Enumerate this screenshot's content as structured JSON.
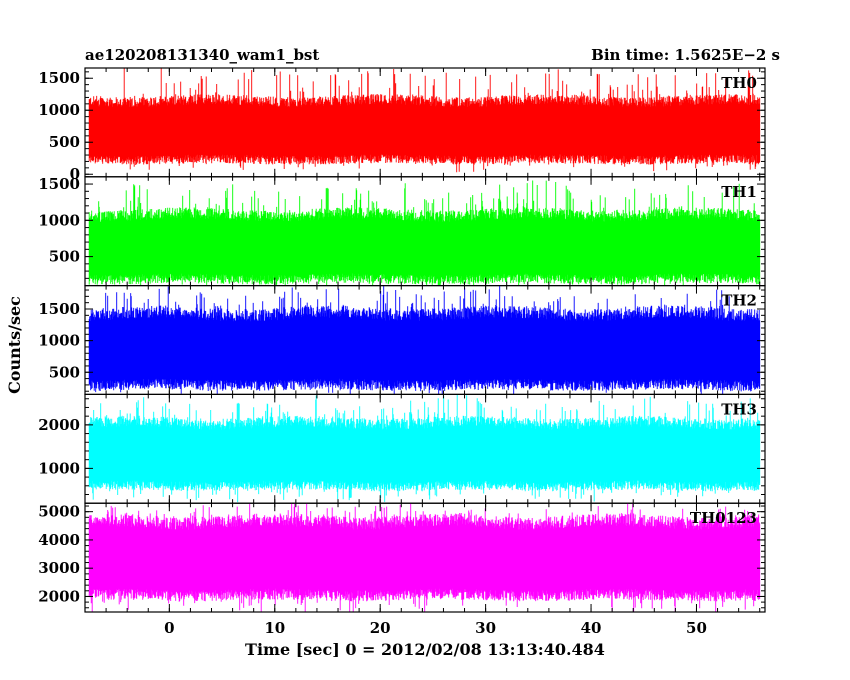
{
  "header": {
    "left_title": "ae120208131340_wam1_bst",
    "right_title": "Bin time: 1.5625E−2 s"
  },
  "axes": {
    "xlabel": "Time [sec] 0 = 2012/02/08 13:13:40.484",
    "ylabel": "Counts/sec"
  },
  "chart_data": {
    "type": "line",
    "x_ticks": [
      0,
      10,
      20,
      30,
      40,
      50
    ],
    "xlim": [
      -8,
      56.5
    ],
    "data_x_range": [
      -7.6,
      56.0
    ],
    "bin_time_s": 0.015625,
    "grid": false,
    "panels": [
      {
        "name": "TH0",
        "color": "#ff0000",
        "ylim": [
          -40,
          1660
        ],
        "y_ticks": [
          0,
          500,
          1000,
          1500
        ],
        "typical_range": [
          230,
          1150
        ],
        "lower_envelope": 90,
        "upper_spikes": 1650,
        "mean": 690
      },
      {
        "name": "TH1",
        "color": "#00ff00",
        "ylim": [
          100,
          1600
        ],
        "y_ticks": [
          500,
          1000,
          1500
        ],
        "typical_range": [
          190,
          1080
        ],
        "lower_envelope": 130,
        "upper_spikes": 1500,
        "mean": 640
      },
      {
        "name": "TH2",
        "color": "#0000ff",
        "ylim": [
          150,
          1870
        ],
        "y_ticks": [
          500,
          1000,
          1500
        ],
        "typical_range": [
          300,
          1430
        ],
        "lower_envelope": 170,
        "upper_spikes": 1800,
        "mean": 870
      },
      {
        "name": "TH3",
        "color": "#00ffff",
        "ylim": [
          200,
          2700
        ],
        "y_ticks": [
          1000,
          2000
        ],
        "typical_range": [
          600,
          2050
        ],
        "lower_envelope": 300,
        "upper_spikes": 2600,
        "mean": 1320
      },
      {
        "name": "TH0123",
        "color": "#ff00ff",
        "ylim": [
          1450,
          5300
        ],
        "y_ticks": [
          2000,
          3000,
          4000,
          5000
        ],
        "typical_range": [
          2050,
          4650
        ],
        "lower_envelope": 1450,
        "upper_spikes": 5200,
        "mean": 3350
      }
    ]
  }
}
